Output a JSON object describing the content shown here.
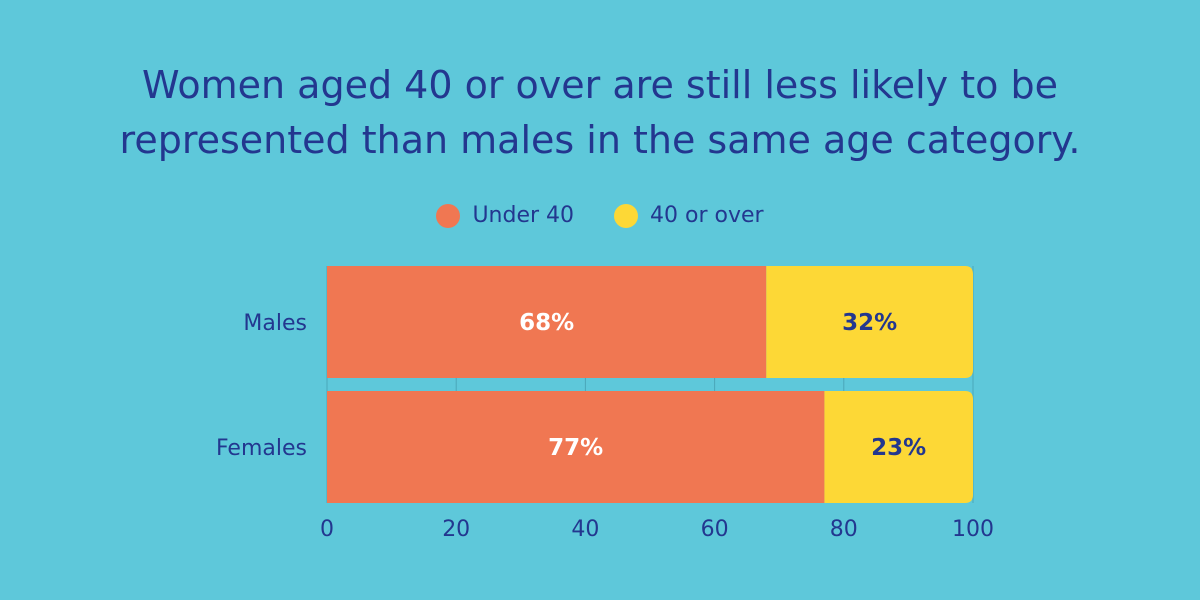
{
  "chart_data": {
    "type": "bar",
    "orientation": "horizontal",
    "stacked": true,
    "title_lines": [
      "Women aged 40 or over are still less likely to be",
      "represented than males in the same age category."
    ],
    "categories": [
      "Males",
      "Females"
    ],
    "series": [
      {
        "name": "Under 40",
        "values": [
          68,
          77
        ],
        "labels": [
          "68%",
          "77%"
        ],
        "color": "#f07752",
        "label_color": "#ffffff"
      },
      {
        "name": "40 or over",
        "values": [
          32,
          23
        ],
        "labels": [
          "32%",
          "23%"
        ],
        "color": "#fdd836",
        "label_color": "#23378f"
      }
    ],
    "xlim": [
      0,
      100
    ],
    "xticks": [
      0,
      20,
      40,
      60,
      80,
      100
    ],
    "grid": true,
    "legend_position": "top-center"
  },
  "colors": {
    "background": "#5ec8da",
    "text": "#23378f",
    "grid": "#4aa7b9"
  }
}
